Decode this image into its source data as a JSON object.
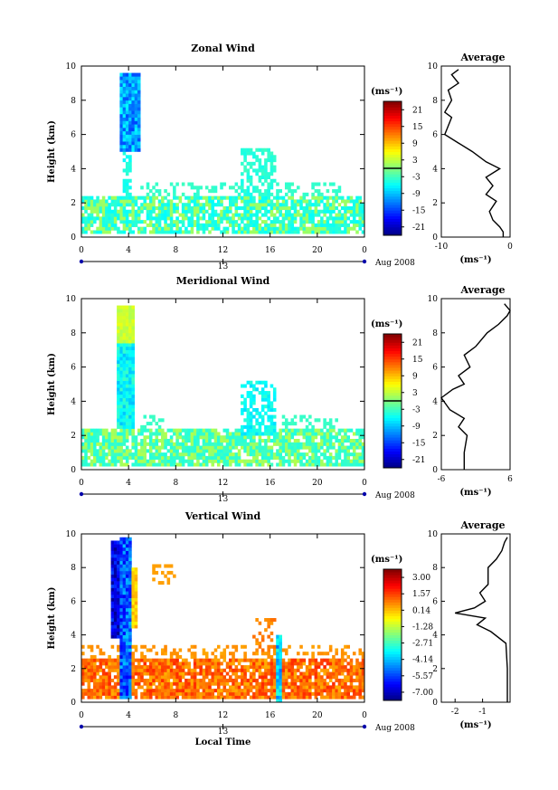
{
  "figure": {
    "date_label": "Aug 2008",
    "day_label": "13",
    "xlabel": "Local Time",
    "avg_title": "Average",
    "unit": "(ms⁻¹)",
    "avg_xlabel": "(ms⁻¹)"
  },
  "chart_data": [
    {
      "type": "heatmap",
      "title": "Zonal Wind",
      "ylabel": "Height (km)",
      "xlim": [
        0,
        24
      ],
      "ylim": [
        0,
        10
      ],
      "xticks": [
        "0",
        "4",
        "8",
        "12",
        "16",
        "20",
        "0"
      ],
      "yticks": [
        "0",
        "2",
        "4",
        "6",
        "8",
        "10"
      ],
      "colorbar": {
        "unit": "(ms⁻¹)",
        "labels": [
          "21",
          "15",
          "9",
          "3",
          "-3",
          "-9",
          "-15",
          "-21"
        ],
        "range": [
          -24,
          24
        ],
        "zero_line": 0
      },
      "field": "zonal",
      "average": {
        "title": "Average",
        "xlim": [
          -10,
          0
        ],
        "xticks": [
          "-10",
          "0"
        ],
        "xlabel": "(ms⁻¹)",
        "points": [
          [
            -1,
            0
          ],
          [
            -1,
            0.3
          ],
          [
            -1.5,
            0.6
          ],
          [
            -2.5,
            1
          ],
          [
            -3,
            1.5
          ],
          [
            -2,
            2.1
          ],
          [
            -3.5,
            2.5
          ],
          [
            -2.5,
            3
          ],
          [
            -3.5,
            3.5
          ],
          [
            -1.5,
            4
          ],
          [
            -3.5,
            4.4
          ],
          [
            -5.5,
            5
          ],
          [
            -7.5,
            5.5
          ],
          [
            -9.5,
            6
          ],
          [
            -8.5,
            7
          ],
          [
            -9.5,
            7.3
          ],
          [
            -8.5,
            8
          ],
          [
            -9,
            8.6
          ],
          [
            -7.5,
            9
          ],
          [
            -8.5,
            9.5
          ],
          [
            -7.5,
            9.8
          ]
        ]
      }
    },
    {
      "type": "heatmap",
      "title": "Meridional Wind",
      "ylabel": "Height (km)",
      "xlim": [
        0,
        24
      ],
      "ylim": [
        0,
        10
      ],
      "xticks": [
        "0",
        "4",
        "8",
        "12",
        "16",
        "20",
        "0"
      ],
      "yticks": [
        "0",
        "2",
        "4",
        "6",
        "8",
        "10"
      ],
      "colorbar": {
        "unit": "(ms⁻¹)",
        "labels": [
          "21",
          "15",
          "9",
          "3",
          "-3",
          "-9",
          "-15",
          "-21"
        ],
        "range": [
          -24,
          24
        ],
        "zero_line": 0
      },
      "field": "meridional",
      "average": {
        "title": "Average",
        "xlim": [
          -6,
          6
        ],
        "xticks": [
          "-6",
          "6"
        ],
        "xlabel": "(ms⁻¹)",
        "points": [
          [
            -2,
            0
          ],
          [
            -2,
            1
          ],
          [
            -1.5,
            2
          ],
          [
            -3,
            2.5
          ],
          [
            -2,
            3
          ],
          [
            -4.5,
            3.5
          ],
          [
            -6,
            4.2
          ],
          [
            -4,
            4.7
          ],
          [
            -2,
            5
          ],
          [
            -3,
            5.5
          ],
          [
            -1,
            6
          ],
          [
            -2,
            6.7
          ],
          [
            0,
            7.2
          ],
          [
            2,
            8
          ],
          [
            4,
            8.5
          ],
          [
            5.5,
            9
          ],
          [
            6,
            9.3
          ],
          [
            5,
            9.7
          ]
        ]
      }
    },
    {
      "type": "heatmap",
      "title": "Vertical Wind",
      "ylabel": "Height (km)",
      "xlim": [
        0,
        24
      ],
      "ylim": [
        0,
        10
      ],
      "xticks": [
        "0",
        "4",
        "8",
        "12",
        "16",
        "20",
        "0"
      ],
      "yticks": [
        "0",
        "2",
        "4",
        "6",
        "8",
        "10"
      ],
      "colorbar": {
        "unit": "(ms⁻¹)",
        "labels": [
          "3.00",
          "1.57",
          "0.14",
          "-1.28",
          "-2.71",
          "-4.14",
          "-5.57",
          "-7.00"
        ],
        "range": [
          -7.7,
          3.7
        ]
      },
      "field": "vertical",
      "average": {
        "title": "Average",
        "xlim": [
          -2.5,
          0
        ],
        "xticks": [
          "-2",
          "-1"
        ],
        "xlabel": "(ms⁻¹)",
        "points": [
          [
            -0.1,
            0
          ],
          [
            -0.1,
            2
          ],
          [
            -0.15,
            3.5
          ],
          [
            -0.7,
            4.2
          ],
          [
            -1.2,
            4.6
          ],
          [
            -0.9,
            5
          ],
          [
            -2,
            5.3
          ],
          [
            -1.3,
            5.6
          ],
          [
            -0.9,
            6
          ],
          [
            -1.1,
            6.5
          ],
          [
            -0.8,
            7
          ],
          [
            -0.8,
            8
          ],
          [
            -0.5,
            8.5
          ],
          [
            -0.3,
            9
          ],
          [
            -0.2,
            9.5
          ],
          [
            -0.1,
            9.8
          ]
        ]
      }
    }
  ]
}
